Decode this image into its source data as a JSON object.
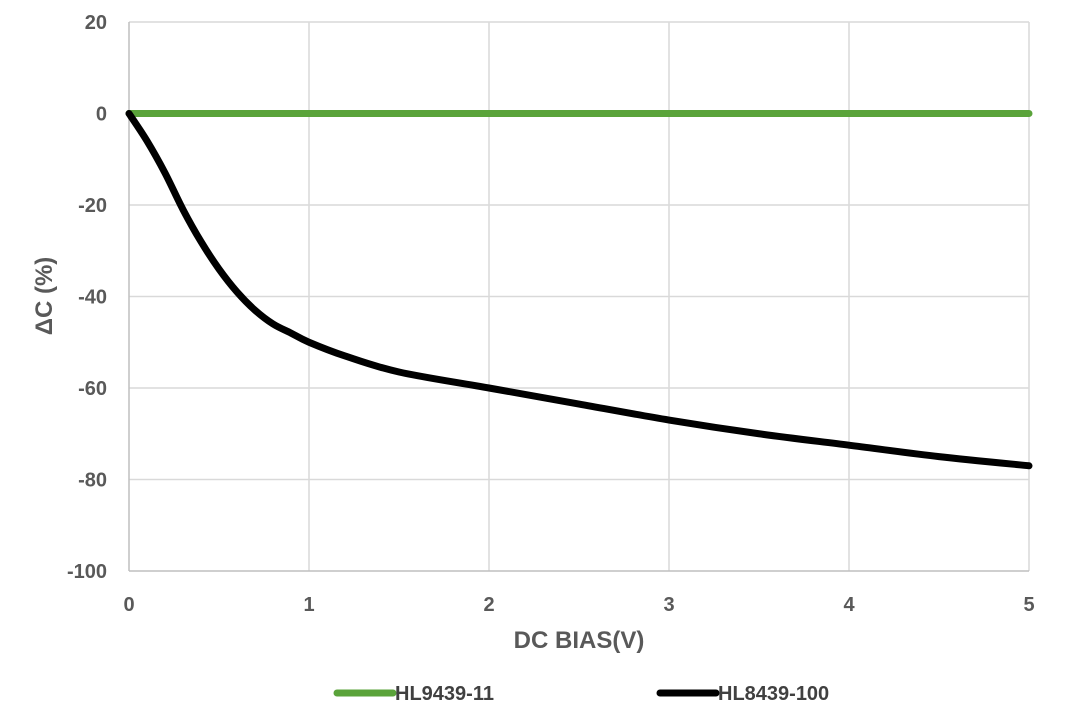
{
  "chart_data": {
    "type": "line",
    "title": "",
    "xlabel": "DC BIAS(V)",
    "ylabel": "ΔC (%)",
    "xlim": [
      0,
      5
    ],
    "ylim": [
      -100,
      20
    ],
    "xticks": [
      "0",
      "1",
      "2",
      "3",
      "4",
      "5"
    ],
    "yticks": [
      "20",
      "0",
      "-20",
      "-40",
      "-60",
      "-80",
      "-100"
    ],
    "grid": true,
    "legend_position": "bottom",
    "series": [
      {
        "name": "HL9439-11",
        "color": "#5aa33a",
        "x": [
          0,
          0.5,
          1,
          1.5,
          2,
          2.5,
          3,
          3.5,
          4,
          4.5,
          5
        ],
        "y": [
          0,
          0,
          0,
          0,
          0,
          0,
          0,
          0,
          0,
          0,
          0
        ]
      },
      {
        "name": "HL8439-100",
        "color": "#000000",
        "x": [
          0,
          0.1,
          0.2,
          0.3,
          0.4,
          0.5,
          0.6,
          0.7,
          0.8,
          0.9,
          1.0,
          1.2,
          1.5,
          2.0,
          2.5,
          3.0,
          3.5,
          4.0,
          4.5,
          5.0
        ],
        "y": [
          0,
          -6,
          -13,
          -21,
          -28,
          -34,
          -39,
          -43,
          -46,
          -48,
          -50,
          -53,
          -56.5,
          -60,
          -63.5,
          -67,
          -70,
          -72.5,
          -75,
          -77
        ]
      }
    ]
  }
}
